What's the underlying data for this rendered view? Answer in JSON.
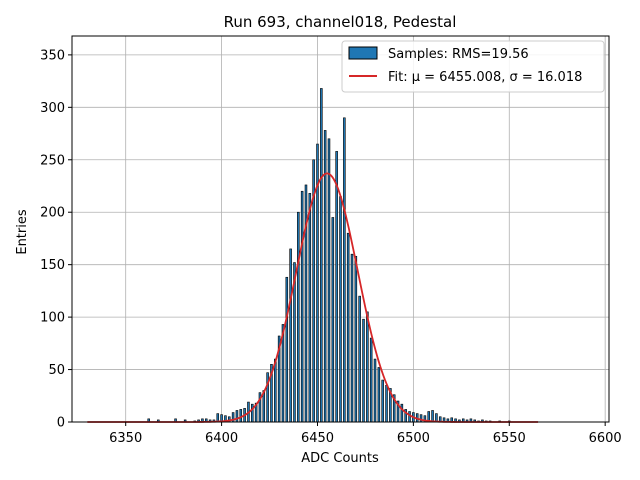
{
  "chart_data": {
    "type": "bar",
    "title": "Run 693, channel018, Pedestal",
    "xlabel": "ADC Counts",
    "ylabel": "Entries",
    "xlim": [
      6322,
      6602
    ],
    "ylim": [
      0,
      368
    ],
    "x_ticks": [
      "6350",
      "6400",
      "6450",
      "6500",
      "6550",
      "6600"
    ],
    "y_ticks": [
      "0",
      "50",
      "100",
      "150",
      "200",
      "250",
      "300",
      "350"
    ],
    "grid": true,
    "legend_position": "top-right",
    "series": [
      {
        "name": "Samples: RMS=19.56",
        "type": "histogram",
        "color": "#1f77b4",
        "edgecolor": "#000000",
        "bin_width": 1,
        "points": [
          [
            6362,
            3
          ],
          [
            6367,
            2
          ],
          [
            6376,
            3
          ],
          [
            6381,
            2
          ],
          [
            6386,
            1
          ],
          [
            6388,
            2
          ],
          [
            6390,
            3
          ],
          [
            6392,
            3
          ],
          [
            6394,
            2
          ],
          [
            6396,
            2
          ],
          [
            6398,
            8
          ],
          [
            6400,
            7
          ],
          [
            6402,
            6
          ],
          [
            6404,
            5
          ],
          [
            6406,
            9
          ],
          [
            6408,
            11
          ],
          [
            6410,
            12
          ],
          [
            6412,
            13
          ],
          [
            6414,
            19
          ],
          [
            6416,
            17
          ],
          [
            6418,
            18
          ],
          [
            6420,
            28
          ],
          [
            6422,
            30
          ],
          [
            6424,
            47
          ],
          [
            6426,
            55
          ],
          [
            6428,
            60
          ],
          [
            6430,
            82
          ],
          [
            6432,
            93
          ],
          [
            6434,
            138
          ],
          [
            6436,
            165
          ],
          [
            6438,
            152
          ],
          [
            6440,
            200
          ],
          [
            6442,
            220
          ],
          [
            6444,
            226
          ],
          [
            6446,
            218
          ],
          [
            6448,
            250
          ],
          [
            6450,
            265
          ],
          [
            6452,
            318
          ],
          [
            6454,
            278
          ],
          [
            6456,
            270
          ],
          [
            6458,
            195
          ],
          [
            6460,
            258
          ],
          [
            6462,
            215
          ],
          [
            6464,
            290
          ],
          [
            6466,
            180
          ],
          [
            6468,
            160
          ],
          [
            6470,
            158
          ],
          [
            6472,
            120
          ],
          [
            6474,
            98
          ],
          [
            6476,
            105
          ],
          [
            6478,
            80
          ],
          [
            6480,
            60
          ],
          [
            6482,
            52
          ],
          [
            6484,
            40
          ],
          [
            6486,
            35
          ],
          [
            6488,
            32
          ],
          [
            6490,
            26
          ],
          [
            6492,
            20
          ],
          [
            6494,
            17
          ],
          [
            6496,
            12
          ],
          [
            6498,
            10
          ],
          [
            6500,
            9
          ],
          [
            6502,
            8
          ],
          [
            6504,
            7
          ],
          [
            6506,
            6
          ],
          [
            6508,
            10
          ],
          [
            6510,
            11
          ],
          [
            6512,
            8
          ],
          [
            6514,
            5
          ],
          [
            6516,
            4
          ],
          [
            6518,
            3
          ],
          [
            6520,
            4
          ],
          [
            6522,
            3
          ],
          [
            6524,
            2
          ],
          [
            6526,
            3
          ],
          [
            6528,
            2
          ],
          [
            6530,
            3
          ],
          [
            6532,
            2
          ],
          [
            6534,
            1
          ],
          [
            6536,
            2
          ],
          [
            6538,
            1
          ],
          [
            6540,
            1
          ],
          [
            6545,
            1
          ],
          [
            6550,
            1
          ]
        ]
      },
      {
        "name": "Fit: μ = 6455.008, σ = 16.018",
        "type": "line",
        "color": "#d62728",
        "mu": 6455.008,
        "sigma": 16.018,
        "amplitude": 237,
        "x_range": [
          6330,
          6565
        ]
      }
    ]
  }
}
